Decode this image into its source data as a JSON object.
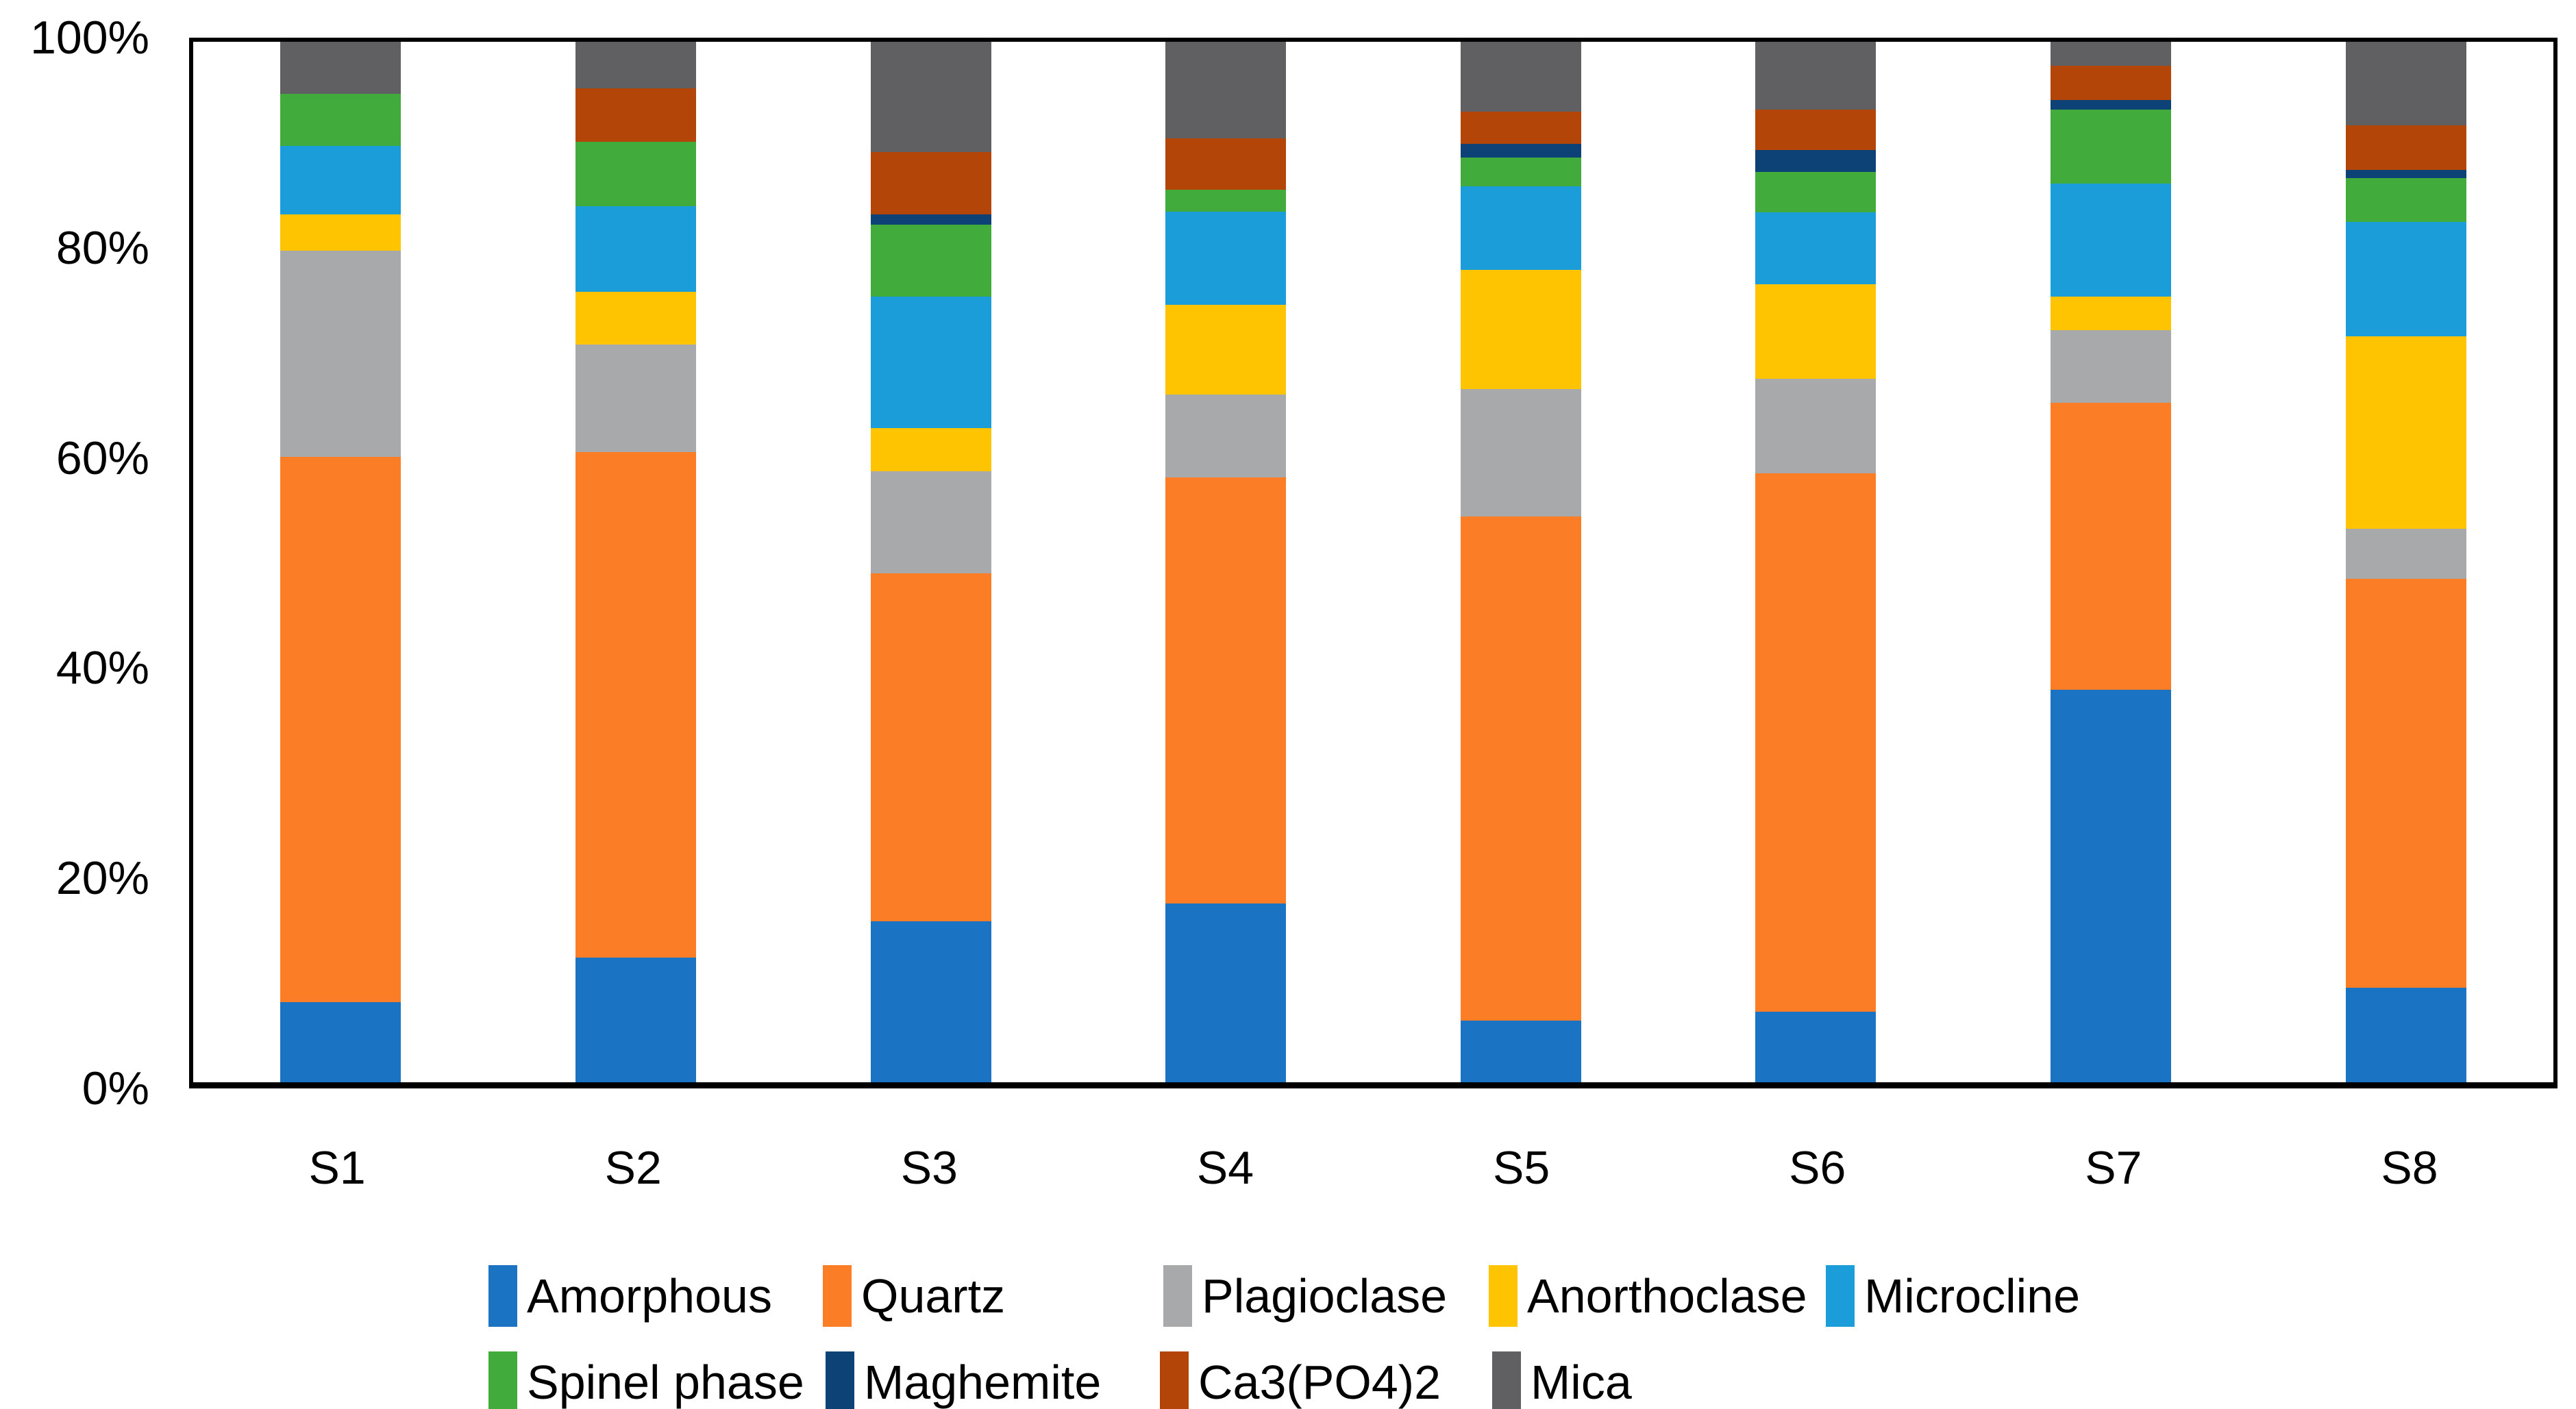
{
  "chart_data": {
    "type": "bar",
    "variant": "100%-stacked-column",
    "title": "",
    "xlabel": "",
    "ylabel": "",
    "grid": false,
    "legend_position": "bottom",
    "ylim": [
      0,
      100
    ],
    "y_ticks": [
      "0%",
      "20%",
      "40%",
      "60%",
      "80%",
      "100%"
    ],
    "y_tick_values": [
      0,
      20,
      40,
      60,
      80,
      100
    ],
    "categories": [
      "S1",
      "S2",
      "S3",
      "S4",
      "S5",
      "S6",
      "S7",
      "S8"
    ],
    "series": [
      {
        "name": "Amorphous",
        "color": "#1B73C4",
        "values": [
          7.7,
          12.0,
          15.5,
          17.2,
          5.9,
          6.8,
          37.7,
          9.1
        ]
      },
      {
        "name": "Quartz",
        "color": "#FB7D26",
        "values": [
          52.4,
          48.6,
          33.4,
          40.9,
          48.5,
          51.7,
          27.6,
          39.3
        ]
      },
      {
        "name": "Plagioclase",
        "color": "#A8A9AB",
        "values": [
          19.8,
          10.3,
          9.8,
          8.0,
          12.2,
          9.1,
          7.0,
          4.8
        ]
      },
      {
        "name": "Anorthoclase",
        "color": "#FEC401",
        "values": [
          3.5,
          5.1,
          4.2,
          8.6,
          11.5,
          9.1,
          3.2,
          18.5
        ]
      },
      {
        "name": "Microcline",
        "color": "#1B9DD9",
        "values": [
          6.6,
          8.2,
          12.6,
          9.0,
          8.0,
          6.9,
          10.9,
          11.0
        ]
      },
      {
        "name": "Spinel phase",
        "color": "#41AC3B",
        "values": [
          5.0,
          6.2,
          6.9,
          2.1,
          2.8,
          3.9,
          7.1,
          4.2
        ]
      },
      {
        "name": "Maghemite",
        "color": "#0D4277",
        "values": [
          0,
          0,
          1.0,
          0,
          1.3,
          2.1,
          0.9,
          0.8
        ]
      },
      {
        "name": "Ca3(PO4)2",
        "color": "#B34508",
        "values": [
          0,
          5.1,
          6.0,
          4.9,
          3.1,
          3.9,
          3.3,
          4.3
        ]
      },
      {
        "name": "Mica",
        "color": "#606062",
        "values": [
          5.0,
          4.5,
          10.6,
          9.3,
          6.7,
          6.5,
          2.3,
          8.0
        ]
      }
    ],
    "legend_rows": [
      [
        0,
        1,
        2,
        3,
        4
      ],
      [
        5,
        6,
        7,
        8
      ]
    ],
    "axis_color": "#000000",
    "background_color": "#FFFFFF"
  }
}
